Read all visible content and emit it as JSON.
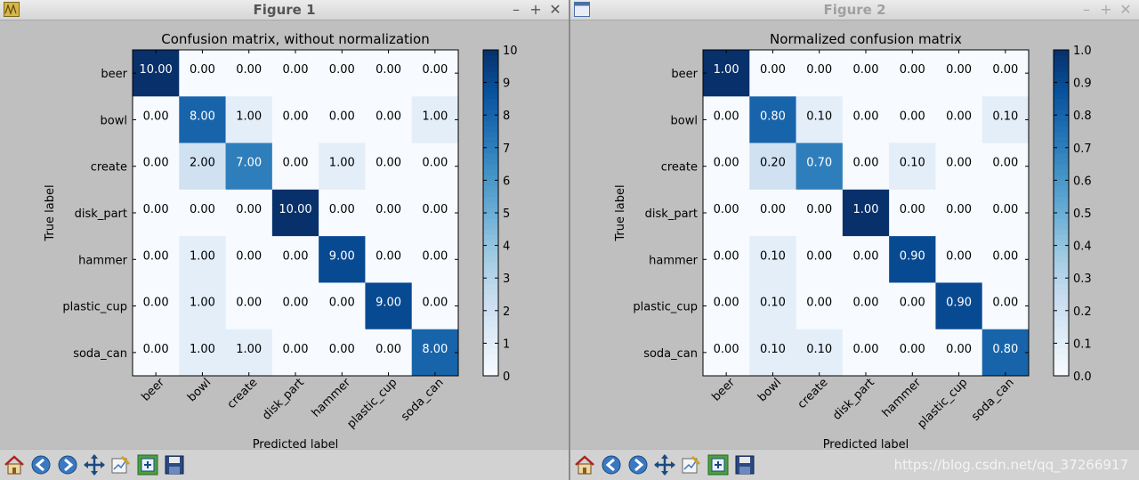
{
  "windows": [
    {
      "title": "Figure 1",
      "chart_data": {
        "type": "heatmap",
        "title": "Confusion matrix, without normalization",
        "xlabel": "Predicted label",
        "ylabel": "True label",
        "categories": [
          "beer",
          "bowl",
          "create",
          "disk_part",
          "hammer",
          "plastic_cup",
          "soda_can"
        ],
        "values": [
          [
            10,
            0,
            0,
            0,
            0,
            0,
            0
          ],
          [
            0,
            8,
            1,
            0,
            0,
            0,
            1
          ],
          [
            0,
            2,
            7,
            0,
            1,
            0,
            0
          ],
          [
            0,
            0,
            0,
            10,
            0,
            0,
            0
          ],
          [
            0,
            1,
            0,
            0,
            9,
            0,
            0
          ],
          [
            0,
            1,
            0,
            0,
            0,
            9,
            0
          ],
          [
            0,
            1,
            1,
            0,
            0,
            0,
            8
          ]
        ],
        "cell_labels": [
          [
            "10.00",
            "0.00",
            "0.00",
            "0.00",
            "0.00",
            "0.00",
            "0.00"
          ],
          [
            "0.00",
            "8.00",
            "1.00",
            "0.00",
            "0.00",
            "0.00",
            "1.00"
          ],
          [
            "0.00",
            "2.00",
            "7.00",
            "0.00",
            "1.00",
            "0.00",
            "0.00"
          ],
          [
            "0.00",
            "0.00",
            "0.00",
            "10.00",
            "0.00",
            "0.00",
            "0.00"
          ],
          [
            "0.00",
            "1.00",
            "0.00",
            "0.00",
            "9.00",
            "0.00",
            "0.00"
          ],
          [
            "0.00",
            "1.00",
            "0.00",
            "0.00",
            "0.00",
            "9.00",
            "0.00"
          ],
          [
            "0.00",
            "1.00",
            "1.00",
            "0.00",
            "0.00",
            "0.00",
            "8.00"
          ]
        ],
        "colorbar_range": [
          0,
          10
        ],
        "colorbar_ticks": [
          "0",
          "1",
          "2",
          "3",
          "4",
          "5",
          "6",
          "7",
          "8",
          "9",
          "10"
        ],
        "colormap": "Blues"
      }
    },
    {
      "title": "Figure 2",
      "chart_data": {
        "type": "heatmap",
        "title": "Normalized confusion matrix",
        "xlabel": "Predicted label",
        "ylabel": "True label",
        "categories": [
          "beer",
          "bowl",
          "create",
          "disk_part",
          "hammer",
          "plastic_cup",
          "soda_can"
        ],
        "values": [
          [
            1.0,
            0,
            0,
            0,
            0,
            0,
            0
          ],
          [
            0,
            0.8,
            0.1,
            0,
            0,
            0,
            0.1
          ],
          [
            0,
            0.2,
            0.7,
            0,
            0.1,
            0,
            0
          ],
          [
            0,
            0,
            0,
            1.0,
            0,
            0,
            0
          ],
          [
            0,
            0.1,
            0,
            0,
            0.9,
            0,
            0
          ],
          [
            0,
            0.1,
            0,
            0,
            0,
            0.9,
            0
          ],
          [
            0,
            0.1,
            0.1,
            0,
            0,
            0,
            0.8
          ]
        ],
        "cell_labels": [
          [
            "1.00",
            "0.00",
            "0.00",
            "0.00",
            "0.00",
            "0.00",
            "0.00"
          ],
          [
            "0.00",
            "0.80",
            "0.10",
            "0.00",
            "0.00",
            "0.00",
            "0.10"
          ],
          [
            "0.00",
            "0.20",
            "0.70",
            "0.00",
            "0.10",
            "0.00",
            "0.00"
          ],
          [
            "0.00",
            "0.00",
            "0.00",
            "1.00",
            "0.00",
            "0.00",
            "0.00"
          ],
          [
            "0.00",
            "0.10",
            "0.00",
            "0.00",
            "0.90",
            "0.00",
            "0.00"
          ],
          [
            "0.00",
            "0.10",
            "0.00",
            "0.00",
            "0.00",
            "0.90",
            "0.00"
          ],
          [
            "0.00",
            "0.10",
            "0.10",
            "0.00",
            "0.00",
            "0.00",
            "0.80"
          ]
        ],
        "colorbar_range": [
          0,
          1
        ],
        "colorbar_ticks": [
          "0.0",
          "0.1",
          "0.2",
          "0.3",
          "0.4",
          "0.5",
          "0.6",
          "0.7",
          "0.8",
          "0.9",
          "1.0"
        ],
        "colormap": "Blues"
      }
    }
  ],
  "toolbar": {
    "icons": [
      "home-icon",
      "back-icon",
      "forward-icon",
      "pan-icon",
      "configure-subplots-icon",
      "zoom-icon",
      "save-icon"
    ]
  },
  "watermark": "https://blog.csdn.net/qq_37266917"
}
